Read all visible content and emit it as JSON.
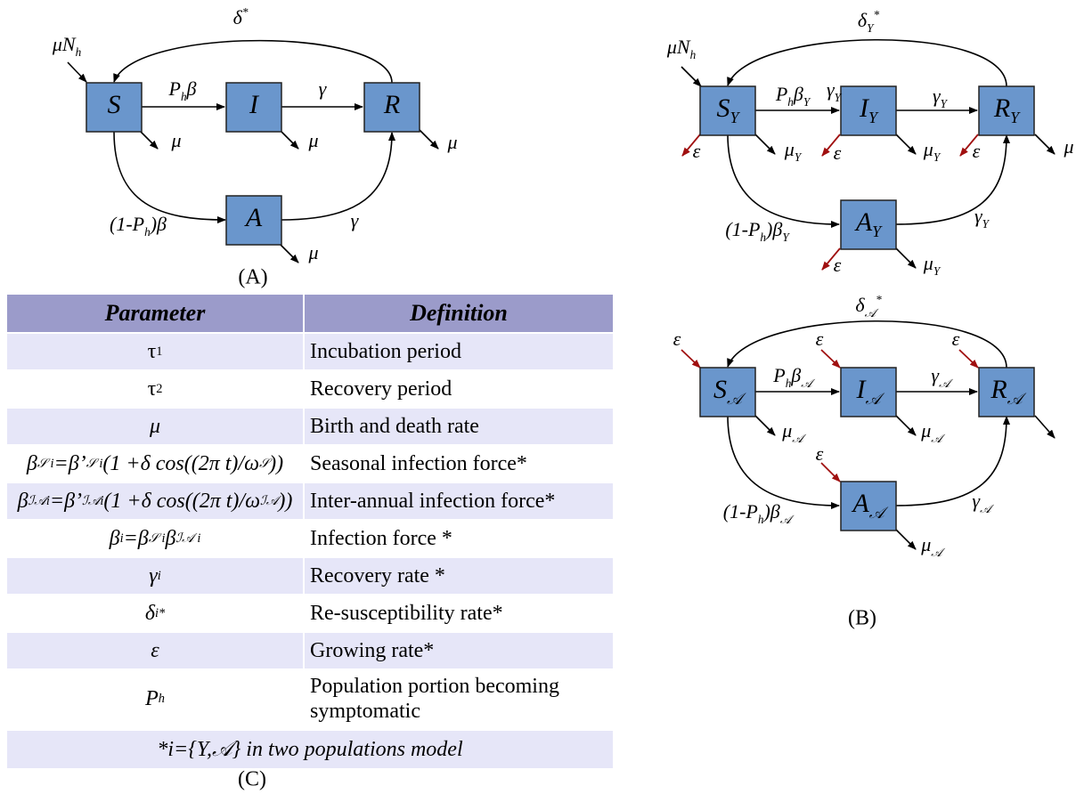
{
  "panel_a": {
    "caption": "(A)",
    "nodes": [
      [
        {
          "t": "S"
        }
      ],
      [
        {
          "t": "I"
        }
      ],
      [
        {
          "t": "R"
        }
      ],
      [
        {
          "t": "A"
        }
      ]
    ],
    "edge_labels": [
      [
        {
          "t": "μN"
        },
        {
          "sub": "h"
        }
      ],
      [
        {
          "t": "δ"
        },
        {
          "sup": "*"
        }
      ],
      [
        {
          "t": "P"
        },
        {
          "sub": "h"
        },
        {
          "t": "β"
        }
      ],
      [
        {
          "t": "γ"
        }
      ],
      [
        {
          "t": "(1-P"
        },
        {
          "sub": "h"
        },
        {
          "t": ")β"
        }
      ],
      [
        {
          "t": "γ"
        }
      ],
      [
        {
          "t": "μ"
        }
      ],
      [
        {
          "t": "μ"
        }
      ],
      [
        {
          "t": "μ"
        }
      ],
      [
        {
          "t": "μ"
        }
      ]
    ]
  },
  "panel_b": {
    "caption": "(B)",
    "top": {
      "nodes": [
        [
          {
            "t": "S"
          },
          {
            "sub": "Y"
          }
        ],
        [
          {
            "t": "I"
          },
          {
            "sub": "Y"
          }
        ],
        [
          {
            "t": "R"
          },
          {
            "sub": "Y"
          }
        ],
        [
          {
            "t": "A"
          },
          {
            "sub": "Y"
          }
        ]
      ],
      "edge_labels": [
        [
          {
            "t": "μN"
          },
          {
            "sub": "h"
          }
        ],
        [
          {
            "t": "δ"
          },
          {
            "sub": "Y"
          },
          {
            "sup": "*"
          }
        ],
        [
          {
            "t": "P"
          },
          {
            "sub": "h"
          },
          {
            "t": "β"
          },
          {
            "sub": "Y"
          }
        ],
        [
          {
            "t": "γ"
          },
          {
            "sub": "Y"
          }
        ],
        [
          {
            "t": "γ"
          },
          {
            "sub": "Y"
          }
        ],
        [
          {
            "t": "(1-P"
          },
          {
            "sub": "h"
          },
          {
            "t": ")β"
          },
          {
            "sub": "Y"
          }
        ],
        [
          {
            "t": "γ"
          },
          {
            "sub": "Y"
          }
        ],
        [
          {
            "t": "μ"
          },
          {
            "sub": "Y"
          }
        ],
        [
          {
            "t": "μ"
          },
          {
            "sub": "Y"
          }
        ],
        [
          {
            "t": "μ"
          }
        ],
        [
          {
            "t": "μ"
          },
          {
            "sub": "Y"
          }
        ],
        [
          {
            "t": "ε"
          }
        ],
        [
          {
            "t": "ε"
          }
        ],
        [
          {
            "t": "ε"
          }
        ],
        [
          {
            "t": "ε"
          }
        ]
      ]
    },
    "bottom": {
      "nodes": [
        [
          {
            "t": "S"
          },
          {
            "sub": "𝒜"
          }
        ],
        [
          {
            "t": "I"
          },
          {
            "sub": "𝒜"
          }
        ],
        [
          {
            "t": "R"
          },
          {
            "sub": "𝒜"
          }
        ],
        [
          {
            "t": "A"
          },
          {
            "sub": "𝒜"
          }
        ]
      ],
      "edge_labels": [
        [
          {
            "t": "δ"
          },
          {
            "sub": "𝒜"
          },
          {
            "sup": "*"
          }
        ],
        [
          {
            "t": "P"
          },
          {
            "sub": "h"
          },
          {
            "t": "β"
          },
          {
            "sub": "𝒜"
          }
        ],
        [
          {
            "t": "γ"
          },
          {
            "sub": "𝒜"
          }
        ],
        [
          {
            "t": "(1-P"
          },
          {
            "sub": "h"
          },
          {
            "t": ")β"
          },
          {
            "sub": "𝒜"
          }
        ],
        [
          {
            "t": "γ"
          },
          {
            "sub": "𝒜"
          }
        ],
        [
          {
            "t": "μ"
          },
          {
            "sub": "𝒜"
          }
        ],
        [
          {
            "t": "μ"
          },
          {
            "sub": "𝒜"
          }
        ],
        [
          {
            "t": "μ"
          },
          {
            "sub": "𝒜"
          }
        ],
        [
          {
            "t": "ε"
          }
        ],
        [
          {
            "t": "ε"
          }
        ],
        [
          {
            "t": "ε"
          }
        ],
        [
          {
            "t": "ε"
          }
        ]
      ]
    }
  },
  "table": {
    "caption": "(C)",
    "header": [
      "Parameter",
      "Definition"
    ],
    "rows": [
      [
        [
          {
            "t": "τ"
          },
          {
            "sub": "1"
          }
        ],
        "Incubation period"
      ],
      [
        [
          {
            "t": "τ"
          },
          {
            "sub": "2"
          }
        ],
        "Recovery period"
      ],
      [
        [
          {
            "t": "μ"
          }
        ],
        "Birth and death rate"
      ],
      [
        [
          {
            "t": "β"
          },
          {
            "sub": "𝒮 i"
          },
          {
            "t": "=β’"
          },
          {
            "sub": "𝒮 i"
          },
          {
            "t": "(1 +δ cos((2π t)/ω"
          },
          {
            "sub": "𝒮"
          },
          {
            "t": "))"
          }
        ],
        "Seasonal infection force*"
      ],
      [
        [
          {
            "t": "β"
          },
          {
            "sub": "ℐ𝒜i"
          },
          {
            "t": "=β’"
          },
          {
            "sub": "ℐ𝒜i"
          },
          {
            "t": "(1 +δ cos((2π t)/ω"
          },
          {
            "sub": "ℐ𝒜"
          },
          {
            "t": "))"
          }
        ],
        "Inter-annual infection force*"
      ],
      [
        [
          {
            "t": "β"
          },
          {
            "sub": "i"
          },
          {
            "t": "=β"
          },
          {
            "sub": "𝒮 i"
          },
          {
            "t": "β"
          },
          {
            "sub": "ℐ𝒜 i"
          }
        ],
        "Infection force *"
      ],
      [
        [
          {
            "t": "γ"
          },
          {
            "sub": "i"
          }
        ],
        "Recovery rate *"
      ],
      [
        [
          {
            "t": "δ"
          },
          {
            "sub": "i"
          },
          {
            "sup": "*"
          }
        ],
        "Re-susceptibility rate*"
      ],
      [
        [
          {
            "t": "ε"
          }
        ],
        "Growing rate*"
      ],
      [
        [
          {
            "t": "P"
          },
          {
            "sub": "h"
          }
        ],
        "Population portion becoming symptomatic"
      ]
    ],
    "footer": "*i={Y,𝒜} in two populations model"
  }
}
